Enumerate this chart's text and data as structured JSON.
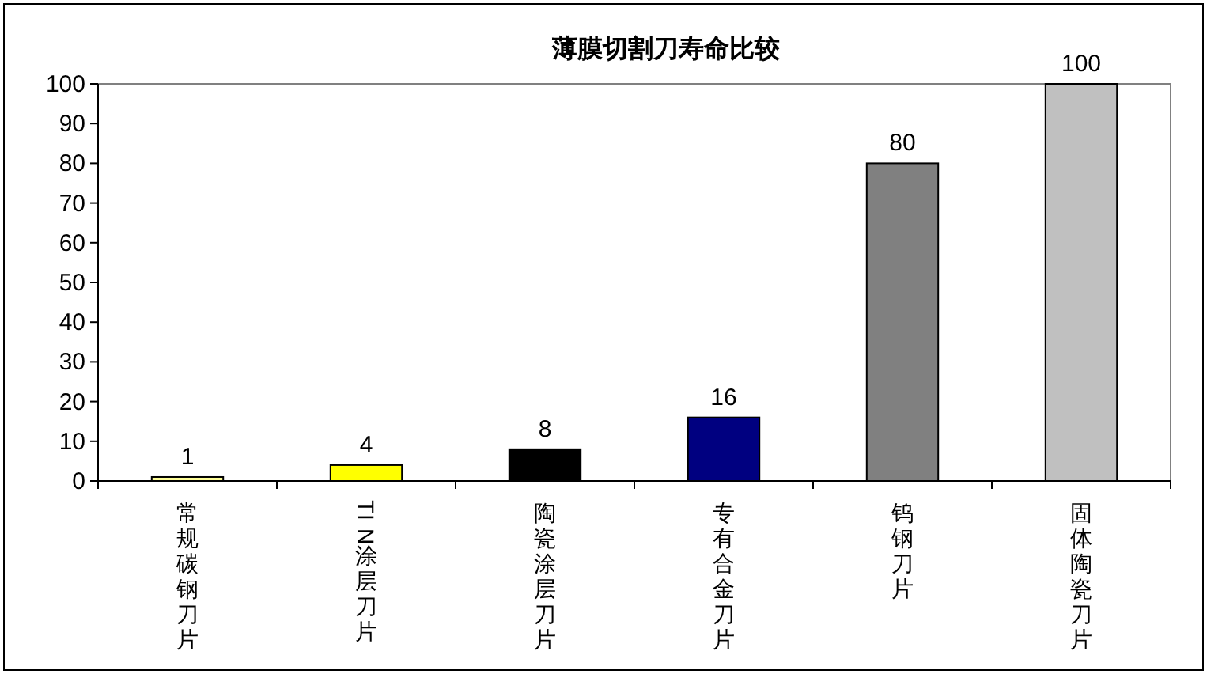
{
  "chart_data": {
    "type": "bar",
    "title": "薄膜切割刀寿命比较",
    "categories": [
      "常规碳钢刀片",
      "TIN涂层刀片",
      "陶瓷涂层刀片",
      "专有合金刀片",
      "钨钢刀片",
      "固体陶瓷刀片"
    ],
    "values": [
      1,
      4,
      8,
      16,
      80,
      100
    ],
    "colors": [
      "#ffff99",
      "#ffff00",
      "#000000",
      "#000080",
      "#808080",
      "#c0c0c0"
    ],
    "ylim": [
      0,
      100
    ],
    "yticks": [
      0,
      10,
      20,
      30,
      40,
      50,
      60,
      70,
      80,
      90,
      100
    ],
    "grid": false,
    "data_labels": true
  }
}
